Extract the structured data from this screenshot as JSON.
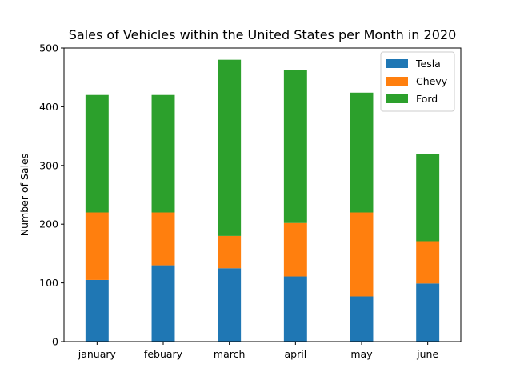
{
  "chart_data": {
    "type": "bar",
    "stacked": true,
    "title": "Sales of Vehicles within the United States per Month in 2020",
    "xlabel": "",
    "ylabel": "Number of Sales",
    "categories": [
      "january",
      "febuary",
      "march",
      "april",
      "may",
      "june"
    ],
    "series": [
      {
        "name": "Tesla",
        "color": "#1f77b4",
        "values": [
          105,
          130,
          125,
          111,
          77,
          99
        ]
      },
      {
        "name": "Chevy",
        "color": "#ff7f0e",
        "values": [
          115,
          90,
          55,
          91,
          143,
          72
        ]
      },
      {
        "name": "Ford",
        "color": "#2ca02c",
        "values": [
          200,
          200,
          300,
          260,
          204,
          149
        ]
      }
    ],
    "ylim": [
      0,
      500
    ],
    "yticks": [
      0,
      100,
      200,
      300,
      400,
      500
    ],
    "grid": false,
    "legend_position": "top-right"
  }
}
